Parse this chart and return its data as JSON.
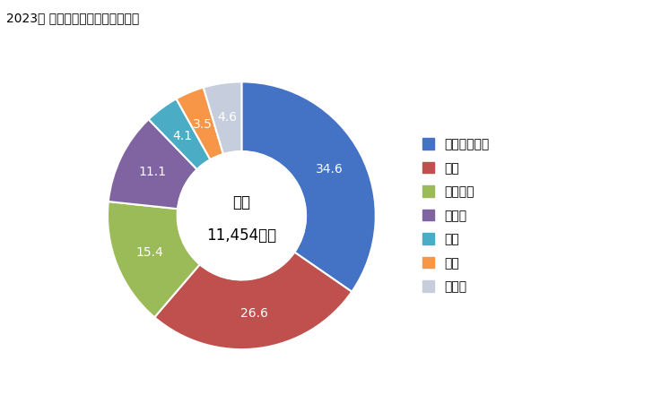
{
  "title": "2023年 輸入相手国のシェア（％）",
  "center_label1": "総額",
  "center_label2": "11,454万円",
  "labels": [
    "インドネシア",
    "韓国",
    "イタリア",
    "トルコ",
    "タイ",
    "中国",
    "その他"
  ],
  "values": [
    34.6,
    26.6,
    15.4,
    11.1,
    4.1,
    3.5,
    4.6
  ],
  "colors": [
    "#4472C4",
    "#C0504D",
    "#9BBB59",
    "#8064A2",
    "#4BACC6",
    "#F79646",
    "#C6CEDD"
  ],
  "donut_width": 0.52,
  "startangle": 90,
  "figsize": [
    7.28,
    4.5
  ],
  "dpi": 100
}
